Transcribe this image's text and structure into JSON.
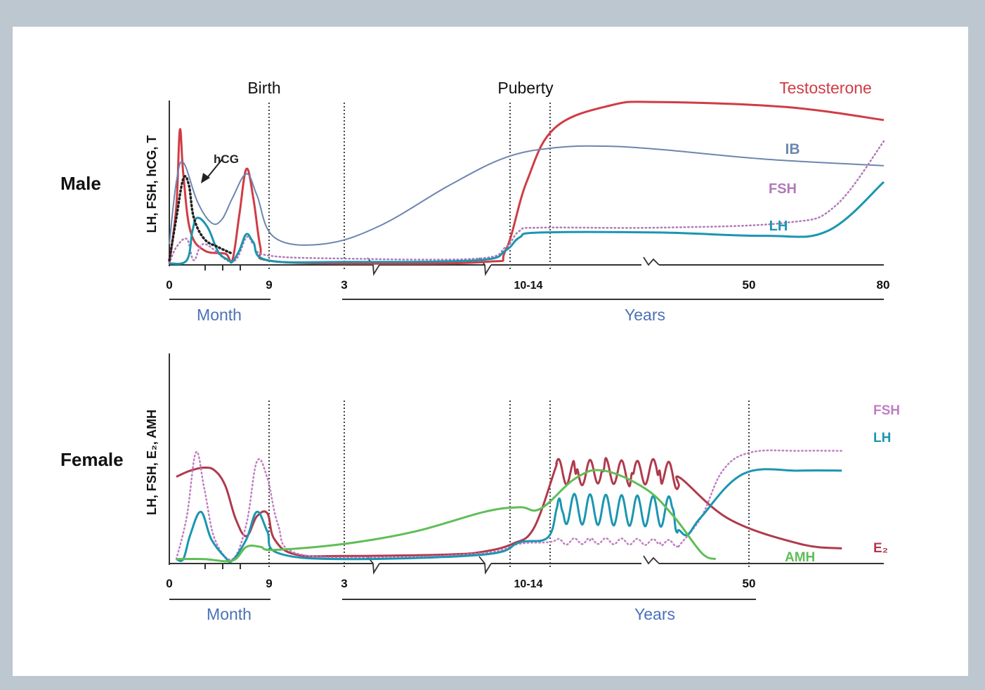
{
  "chart_data": [
    {
      "type": "line",
      "panel": "Male",
      "title": "Male",
      "ylabel": "LH, FSH, hCG, T",
      "markers": [
        "Birth",
        "Puberty"
      ],
      "x_ticks": [
        "0",
        "9",
        "3",
        "10-14",
        "50",
        "80"
      ],
      "x_groups": [
        "Month",
        "Years"
      ],
      "series": [
        {
          "name": "Testosterone",
          "color": "#d03c44",
          "style": "solid",
          "points": [
            [
              0,
              0
            ],
            [
              1,
              0.35
            ],
            [
              1.5,
              0.82
            ],
            [
              2,
              0.55
            ],
            [
              3,
              0.2
            ],
            [
              5,
              0.08
            ],
            [
              8,
              0.06
            ],
            [
              9,
              0.02
            ],
            [
              10,
              0.3
            ],
            [
              11,
              0.58
            ],
            [
              12,
              0.4
            ],
            [
              13,
              0.1
            ],
            [
              14,
              0.02
            ],
            [
              25,
              0
            ],
            [
              45,
              0.01
            ],
            [
              48,
              0.08
            ],
            [
              51,
              0.5
            ],
            [
              55,
              0.83
            ],
            [
              63,
              0.97
            ],
            [
              70,
              0.99
            ],
            [
              88,
              0.96
            ],
            [
              102,
              0.88
            ]
          ]
        },
        {
          "name": "IB",
          "color": "#6d86b0",
          "style": "solid",
          "points": [
            [
              0,
              0.12
            ],
            [
              1,
              0.5
            ],
            [
              2,
              0.62
            ],
            [
              4,
              0.38
            ],
            [
              6,
              0.25
            ],
            [
              7.5,
              0.27
            ],
            [
              9,
              0.4
            ],
            [
              11,
              0.55
            ],
            [
              12.5,
              0.42
            ],
            [
              15,
              0.16
            ],
            [
              22,
              0.12
            ],
            [
              30,
              0.23
            ],
            [
              40,
              0.48
            ],
            [
              48,
              0.65
            ],
            [
              55,
              0.71
            ],
            [
              62,
              0.72
            ],
            [
              70,
              0.7
            ],
            [
              85,
              0.64
            ],
            [
              102,
              0.6
            ]
          ]
        },
        {
          "name": "FSH",
          "color": "#b07ab8",
          "style": "dotted",
          "points": [
            [
              0,
              0
            ],
            [
              1,
              0.1
            ],
            [
              2.5,
              0.15
            ],
            [
              3.5,
              0.02
            ],
            [
              5,
              0.12
            ],
            [
              9,
              0.01
            ],
            [
              11,
              0.16
            ],
            [
              12,
              0.12
            ],
            [
              14,
              0.05
            ],
            [
              25,
              0.03
            ],
            [
              44,
              0.03
            ],
            [
              48,
              0.1
            ],
            [
              50,
              0.2
            ],
            [
              53,
              0.22
            ],
            [
              70,
              0.22
            ],
            [
              88,
              0.25
            ],
            [
              95,
              0.35
            ],
            [
              102,
              0.75
            ]
          ]
        },
        {
          "name": "LH",
          "color": "#1a96b0",
          "style": "solid",
          "points": [
            [
              0,
              0
            ],
            [
              2.5,
              0.02
            ],
            [
              3.3,
              0.2
            ],
            [
              4,
              0.28
            ],
            [
              5.5,
              0.22
            ],
            [
              7,
              0.07
            ],
            [
              8.5,
              0.02
            ],
            [
              9,
              0.01
            ],
            [
              10,
              0.08
            ],
            [
              11,
              0.18
            ],
            [
              12,
              0.13
            ],
            [
              14,
              0.02
            ],
            [
              25,
              0.01
            ],
            [
              44,
              0.02
            ],
            [
              48,
              0.08
            ],
            [
              50,
              0.16
            ],
            [
              53,
              0.19
            ],
            [
              70,
              0.19
            ],
            [
              85,
              0.17
            ],
            [
              94,
              0.2
            ],
            [
              102,
              0.5
            ]
          ]
        },
        {
          "name": "hCG",
          "color": "#222222",
          "style": "dotted",
          "points": [
            [
              0,
              0.02
            ],
            [
              1,
              0.28
            ],
            [
              2,
              0.52
            ],
            [
              2.8,
              0.48
            ],
            [
              3.5,
              0.28
            ],
            [
              5,
              0.15
            ],
            [
              7,
              0.1
            ],
            [
              9,
              0.06
            ]
          ]
        }
      ]
    },
    {
      "type": "line",
      "panel": "Female",
      "title": "Female",
      "ylabel": "LH, FSH, E₂, AMH",
      "x_ticks": [
        "0",
        "9",
        "3",
        "10-14",
        "50"
      ],
      "x_groups": [
        "Month",
        "Years"
      ],
      "series": [
        {
          "name": "E₂",
          "color": "#b03a4c",
          "style": "solid",
          "points": [
            [
              1,
              0.56
            ],
            [
              3,
              0.6
            ],
            [
              5,
              0.62
            ],
            [
              6.5,
              0.6
            ],
            [
              8,
              0.5
            ],
            [
              9.5,
              0.28
            ],
            [
              11,
              0.17
            ],
            [
              12.5,
              0.3
            ],
            [
              14,
              0.32
            ],
            [
              15,
              0.15
            ],
            [
              18,
              0.05
            ],
            [
              25,
              0.04
            ],
            [
              40,
              0.05
            ],
            [
              45,
              0.07
            ],
            [
              49,
              0.12
            ],
            [
              52,
              0.22
            ],
            [
              55,
              0.6
            ],
            [
              58,
              0.58
            ],
            [
              62,
              0.6
            ],
            [
              66,
              0.58
            ],
            [
              70,
              0.6
            ],
            [
              73,
              0.55
            ],
            [
              80,
              0.28
            ],
            [
              90,
              0.12
            ],
            [
              96,
              0.09
            ]
          ]
        },
        {
          "name": "FSH",
          "color": "#c07ec4",
          "style": "dotted",
          "points": [
            [
              1,
              0.02
            ],
            [
              2.5,
              0.3
            ],
            [
              3.8,
              0.72
            ],
            [
              5,
              0.48
            ],
            [
              6.5,
              0.15
            ],
            [
              9,
              0.02
            ],
            [
              11,
              0.25
            ],
            [
              12.5,
              0.66
            ],
            [
              14,
              0.55
            ],
            [
              15.5,
              0.25
            ],
            [
              18,
              0.06
            ],
            [
              30,
              0.03
            ],
            [
              45,
              0.06
            ],
            [
              50,
              0.12
            ],
            [
              54,
              0.13
            ],
            [
              60,
              0.14
            ],
            [
              70,
              0.13
            ],
            [
              73,
              0.12
            ],
            [
              76,
              0.3
            ],
            [
              79,
              0.6
            ],
            [
              83,
              0.72
            ],
            [
              90,
              0.73
            ],
            [
              96,
              0.73
            ]
          ]
        },
        {
          "name": "LH",
          "color": "#1a96b0",
          "style": "solid",
          "points": [
            [
              1,
              0.02
            ],
            [
              2,
              0.02
            ],
            [
              3,
              0.18
            ],
            [
              4.5,
              0.33
            ],
            [
              6,
              0.15
            ],
            [
              8,
              0.03
            ],
            [
              9,
              0.01
            ],
            [
              11,
              0.15
            ],
            [
              12.5,
              0.33
            ],
            [
              14,
              0.2
            ],
            [
              15.5,
              0.06
            ],
            [
              25,
              0.02
            ],
            [
              45,
              0.05
            ],
            [
              50,
              0.13
            ],
            [
              54,
              0.16
            ],
            [
              56,
              0.35
            ],
            [
              72,
              0.33
            ],
            [
              74,
              0.18
            ],
            [
              76,
              0.3
            ],
            [
              82,
              0.58
            ],
            [
              90,
              0.6
            ],
            [
              96,
              0.6
            ]
          ]
        },
        {
          "name": "AMH",
          "color": "#5fbe57",
          "style": "solid",
          "points": [
            [
              1,
              0.02
            ],
            [
              5,
              0.02
            ],
            [
              9,
              0.01
            ],
            [
              11,
              0.1
            ],
            [
              13,
              0.1
            ],
            [
              15,
              0.08
            ],
            [
              25,
              0.12
            ],
            [
              35,
              0.2
            ],
            [
              45,
              0.33
            ],
            [
              50,
              0.36
            ],
            [
              53,
              0.35
            ],
            [
              58,
              0.55
            ],
            [
              62,
              0.6
            ],
            [
              68,
              0.48
            ],
            [
              72,
              0.3
            ],
            [
              76,
              0.06
            ],
            [
              78,
              0.02
            ]
          ]
        }
      ]
    }
  ],
  "labels": {
    "birth": "Birth",
    "puberty": "Puberty",
    "testosterone": "Testosterone",
    "ib": "IB",
    "fsh": "FSH",
    "lh": "LH",
    "hcg": "hCG",
    "male": "Male",
    "female": "Female",
    "male_ylabel": "LH, FSH, hCG, T",
    "female_ylabel": "LH, FSH, E₂, AMH",
    "month": "Month",
    "years": "Years",
    "e2": "E₂",
    "amh": "AMH",
    "tick_0": "0",
    "tick_9": "9",
    "tick_3": "3",
    "tick_1014": "10-14",
    "tick_50": "50",
    "tick_80": "80"
  },
  "colors": {
    "background": "#bcc7d0",
    "panel": "#ffffff",
    "testosterone": "#d03c44",
    "e2": "#b03a4c",
    "ib": "#6d86b0",
    "fsh": "#b07ab8",
    "lh": "#1a96b0",
    "amh": "#5fbe57",
    "hcg": "#222222",
    "axis": "#333333",
    "month_years": "#4a72b8"
  }
}
